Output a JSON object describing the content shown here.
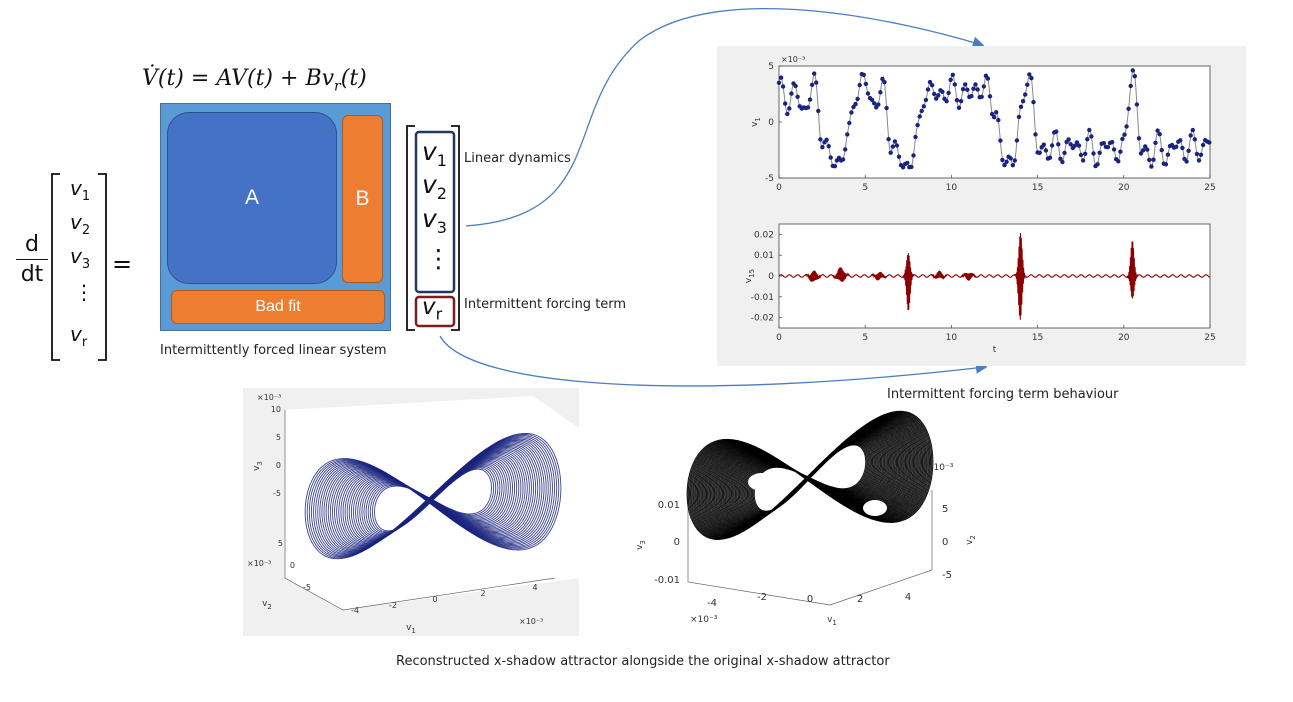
{
  "equation": {
    "text": "V̇(t) = AV(t) + Bv_r(t)",
    "lhs": "V̇(t) = ",
    "term1": "AV(t)",
    "plus": " + ",
    "term2_base": "Bv",
    "term2_sub": "r",
    "term2_end": "(t)"
  },
  "derivative": {
    "numerator": "d",
    "denominator": "dt",
    "equals": "="
  },
  "state_vector": [
    {
      "base": "v",
      "sub": "1"
    },
    {
      "base": "v",
      "sub": "2"
    },
    {
      "base": "v",
      "sub": "3"
    },
    {
      "base": "⋮",
      "sub": ""
    },
    {
      "base": "v",
      "sub": "r"
    }
  ],
  "matrix": {
    "a_label": "A",
    "b_label": "B",
    "bad_fit_label": "Bad fit",
    "caption": "Intermittently forced linear system",
    "colors": {
      "frame": "#5B9BD5",
      "a_block": "#4472C4",
      "b_block": "#ED7D31"
    }
  },
  "linear_vector": [
    {
      "base": "v",
      "sub": "1"
    },
    {
      "base": "v",
      "sub": "2"
    },
    {
      "base": "v",
      "sub": "3"
    },
    {
      "base": "⋮",
      "sub": ""
    }
  ],
  "forcing_vector": {
    "base": "v",
    "sub": "r"
  },
  "annotations": {
    "linear_dynamics": "Linear dynamics",
    "intermittent_forcing": "Intermittent forcing term",
    "behaviour_caption": "Intermittent forcing term behaviour",
    "attractor_caption": "Reconstructed x-shadow attractor alongside the original x-shadow attractor"
  },
  "colors": {
    "arrow": "#4A7EC2",
    "linear_box": "#1F3864",
    "forcing_box": "#7B1E1E",
    "series_v1": "#1A237E",
    "series_v15": "#8B0000"
  },
  "chart_data": [
    {
      "type": "line",
      "ylabel": "v",
      "ylabel_sub": "1",
      "exponent": "×10⁻³",
      "xlim": [
        0,
        25
      ],
      "ylim": [
        -5,
        5
      ],
      "x_ticks": [
        "0",
        "5",
        "10",
        "15",
        "20",
        "25"
      ],
      "y_ticks": [
        "5",
        "0",
        "-5"
      ],
      "series": [
        {
          "name": "v1",
          "markers": true,
          "x": [
            0,
            0.5,
            1,
            1.5,
            2,
            2.5,
            3,
            3.5,
            4,
            4.5,
            5,
            5.5,
            6,
            6.5,
            7,
            7.5,
            8,
            8.5,
            9,
            9.5,
            10,
            10.5,
            11,
            11.5,
            12,
            12.5,
            13,
            13.5,
            14,
            14.5,
            15,
            15.5,
            16,
            16.5,
            17,
            17.5,
            18,
            18.5,
            19,
            19.5,
            20,
            20.5,
            21,
            21.5,
            22,
            22.5,
            23,
            23.5,
            24,
            24.5,
            25
          ],
          "y": [
            3.5,
            1.5,
            3,
            0.5,
            4,
            -1.5,
            -3,
            -4,
            -1,
            2.5,
            4,
            1,
            3.5,
            -2,
            -3,
            -4.5,
            -1,
            2.5,
            3,
            2,
            3.5,
            2,
            3,
            2.5,
            3.5,
            1,
            -3,
            -4,
            0.5,
            4.5,
            -2,
            -3,
            -1.5,
            -3,
            -1.5,
            -3,
            -1.5,
            -3.5,
            -1.5,
            -3,
            -2,
            4.5,
            -2,
            -3.5,
            -1.5,
            -3.5,
            -1.5,
            -3,
            -1.5,
            -3,
            -1
          ]
        }
      ]
    },
    {
      "type": "line",
      "ylabel": "v",
      "ylabel_sub": "15",
      "xlabel": "t",
      "xlim": [
        0,
        25
      ],
      "ylim": [
        -0.025,
        0.025
      ],
      "x_ticks": [
        "0",
        "5",
        "10",
        "15",
        "20",
        "25"
      ],
      "y_ticks": [
        "0.02",
        "0.01",
        "0",
        "-0.01",
        "-0.02"
      ],
      "series": [
        {
          "name": "v15",
          "bursts": [
            {
              "t": 2.0,
              "amp": 0.003
            },
            {
              "t": 3.6,
              "amp": 0.004
            },
            {
              "t": 5.8,
              "amp": 0.002
            },
            {
              "t": 7.5,
              "amp": 0.017
            },
            {
              "t": 9.3,
              "amp": 0.002
            },
            {
              "t": 11.0,
              "amp": 0.002
            },
            {
              "t": 14.0,
              "amp": 0.024
            },
            {
              "t": 20.5,
              "amp": 0.017
            }
          ]
        }
      ]
    },
    {
      "type": "line",
      "title": "reconstructed attractor",
      "x_axis": "v",
      "x_axis_sub": "1",
      "y_axis": "v",
      "y_axis_sub": "2",
      "z_axis": "v",
      "z_axis_sub": "3",
      "v1_ticks": [
        "-4",
        "-2",
        "0",
        "2",
        "4"
      ],
      "v2_ticks": [
        "5",
        "0",
        "-5"
      ],
      "v3_ticks": [
        "10",
        "5",
        "0",
        "-5"
      ],
      "exponent": "×10⁻³"
    },
    {
      "type": "line",
      "title": "original attractor",
      "x_axis": "v",
      "x_axis_sub": "1",
      "y_axis": "v",
      "y_axis_sub": "2",
      "z_axis": "v",
      "z_axis_sub": "3",
      "v1_ticks": [
        "-4",
        "-2",
        "0",
        "2",
        "4"
      ],
      "v2_ticks": [
        "5",
        "0",
        "-5"
      ],
      "v3_ticks": [
        "0.01",
        "0",
        "-0.01"
      ],
      "exponent": "×10⁻³"
    }
  ]
}
